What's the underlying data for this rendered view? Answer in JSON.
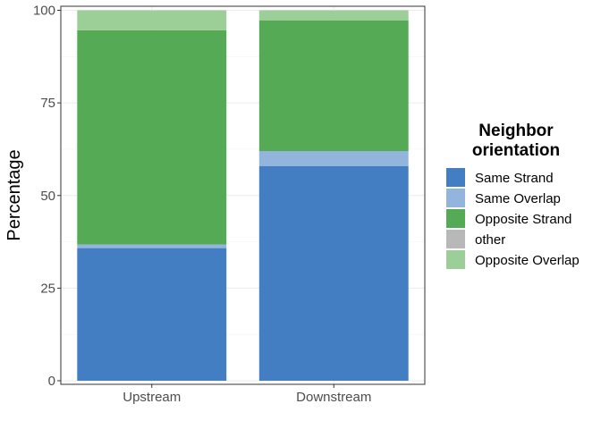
{
  "chart_data": {
    "type": "bar",
    "stacked": true,
    "categories": [
      "Upstream",
      "Downstream"
    ],
    "ylabel": "Percentage",
    "xlabel": "",
    "ylim": [
      0,
      100
    ],
    "yticks": [
      0,
      25,
      50,
      75,
      100
    ],
    "grid": true,
    "legend": {
      "title_lines": [
        "Neighbor",
        "orientation"
      ],
      "placement": "right"
    },
    "series": [
      {
        "name": "Same Strand",
        "color": "#427ec1",
        "values": [
          35.8,
          57.9
        ]
      },
      {
        "name": "Same Overlap",
        "color": "#93b4dc",
        "values": [
          1.0,
          4.1
        ]
      },
      {
        "name": "Opposite Strand",
        "color": "#55aa55",
        "values": [
          57.8,
          35.3
        ]
      },
      {
        "name": "other",
        "color": "#b8b8b8",
        "values": [
          0.0,
          0.0
        ]
      },
      {
        "name": "Opposite Overlap",
        "color": "#9ccf98",
        "values": [
          5.4,
          2.7
        ]
      }
    ]
  }
}
